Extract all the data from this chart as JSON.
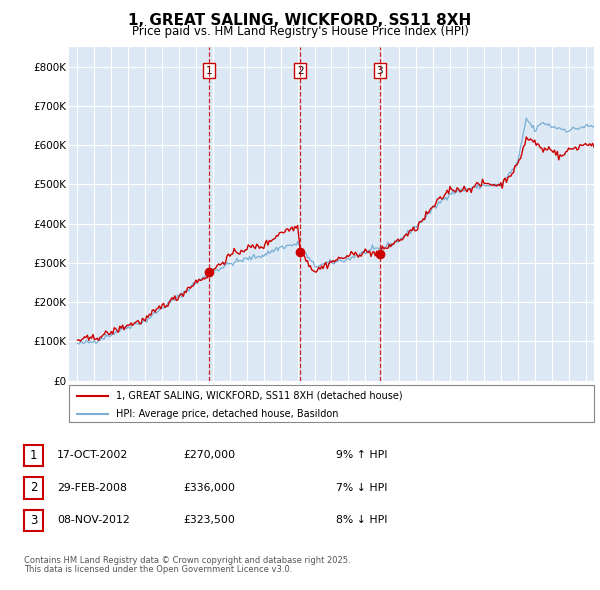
{
  "title": "1, GREAT SALING, WICKFORD, SS11 8XH",
  "subtitle": "Price paid vs. HM Land Registry's House Price Index (HPI)",
  "title_fontsize": 11,
  "subtitle_fontsize": 8.5,
  "background_color": "#ffffff",
  "plot_bg_color": "#dce9f5",
  "grid_color": "#ffffff",
  "red_line_color": "#cc0000",
  "blue_line_color": "#7bafd4",
  "ylim": [
    0,
    850000
  ],
  "yticks": [
    0,
    100000,
    200000,
    300000,
    400000,
    500000,
    600000,
    700000,
    800000
  ],
  "ytick_labels": [
    "£0",
    "£100K",
    "£200K",
    "£300K",
    "£400K",
    "£500K",
    "£600K",
    "£700K",
    "£800K"
  ],
  "sale_events": [
    {
      "num": 1,
      "date_label": "17-OCT-2002",
      "price": "270,000",
      "pct": "9%",
      "dir": "↑",
      "x_year": 2002.79,
      "sale_price": 270000
    },
    {
      "num": 2,
      "date_label": "29-FEB-2008",
      "price": "336,000",
      "pct": "7%",
      "dir": "↓",
      "x_year": 2008.16,
      "sale_price": 336000
    },
    {
      "num": 3,
      "date_label": "08-NOV-2012",
      "price": "323,500",
      "pct": "8%",
      "dir": "↓",
      "x_year": 2012.85,
      "sale_price": 323500
    }
  ],
  "legend_line1": "1, GREAT SALING, WICKFORD, SS11 8XH (detached house)",
  "legend_line2": "HPI: Average price, detached house, Basildon",
  "footnote1": "Contains HM Land Registry data © Crown copyright and database right 2025.",
  "footnote2": "This data is licensed under the Open Government Licence v3.0.",
  "xlim": [
    1994.5,
    2025.5
  ],
  "xticks": [
    1995,
    1996,
    1997,
    1998,
    1999,
    2000,
    2001,
    2002,
    2003,
    2004,
    2005,
    2006,
    2007,
    2008,
    2009,
    2010,
    2011,
    2012,
    2013,
    2014,
    2015,
    2016,
    2017,
    2018,
    2019,
    2020,
    2021,
    2022,
    2023,
    2024,
    2025
  ]
}
